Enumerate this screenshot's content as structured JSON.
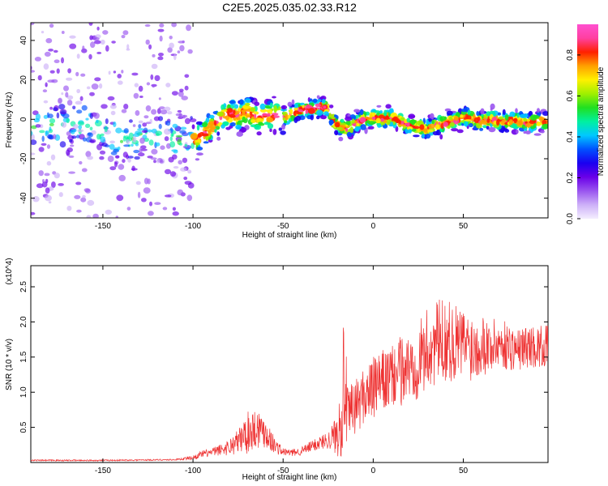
{
  "title": "C2E5.2025.035.02.33.R12",
  "chart_data": [
    {
      "type": "heatmap",
      "xlabel": "Height of straight line (km)",
      "ylabel": "Frequency (Hz)",
      "xlim": [
        -190,
        97
      ],
      "ylim": [
        -50,
        49
      ],
      "xticks": [
        -150,
        -100,
        -50,
        0,
        50
      ],
      "yticks": [
        -40,
        -20,
        0,
        20,
        40
      ],
      "colorbar": {
        "label": "Normalized spectral amplitude",
        "range": [
          0,
          0.95
        ],
        "ticks": [
          0.0,
          0.2,
          0.4,
          0.6,
          0.8
        ],
        "colors": [
          "#f4eefe",
          "#cdb0f8",
          "#9a55ef",
          "#6a00e8",
          "#1a00f0",
          "#0050ff",
          "#00c8ff",
          "#00f0a0",
          "#20e020",
          "#a0f000",
          "#fff000",
          "#ffa000",
          "#ff2000",
          "#ff40a0",
          "#ff50d0"
        ]
      },
      "ridge": {
        "x": [
          -190,
          -175,
          -160,
          -150,
          -140,
          -130,
          -120,
          -110,
          -100,
          -95,
          -90,
          -85,
          -80,
          -75,
          -70,
          -65,
          -60,
          -55,
          -50,
          -45,
          -40,
          -35,
          -30,
          -25,
          -22,
          -20,
          -15,
          -10,
          -5,
          0,
          5,
          10,
          15,
          20,
          25,
          30,
          35,
          40,
          45,
          50,
          55,
          60,
          65,
          70,
          75,
          80,
          85,
          90,
          95
        ],
        "y": [
          -4,
          -3,
          -2,
          -7,
          -11,
          -9,
          -8,
          -10,
          -11,
          -8,
          -4,
          0,
          3,
          2,
          4,
          1,
          2,
          2,
          1,
          3,
          5,
          5,
          6,
          6,
          -1,
          -3,
          -5,
          -2,
          0,
          1,
          0,
          1,
          -1,
          -3,
          -4,
          -5,
          -3,
          -2,
          -1,
          1,
          0,
          -1,
          0,
          -1,
          -1,
          -1,
          -2,
          -1,
          -1
        ]
      }
    },
    {
      "type": "line",
      "xlabel": "Height of straight line (km)",
      "ylabel": "SNR (10 * v/v)",
      "yunit": "(x10^4)",
      "xlim": [
        -190,
        97
      ],
      "ylim": [
        0,
        2.8
      ],
      "xticks": [
        -150,
        -100,
        -50,
        0,
        50
      ],
      "yticks": [
        0.5,
        1.0,
        1.5,
        2.0,
        2.5
      ],
      "color": "#ee3333",
      "envelope": {
        "x": [
          -190,
          -150,
          -110,
          -100,
          -95,
          -90,
          -85,
          -80,
          -75,
          -70,
          -65,
          -60,
          -55,
          -50,
          -45,
          -40,
          -35,
          -30,
          -25,
          -20,
          -18,
          -16,
          -14,
          -12,
          -10,
          -5,
          0,
          5,
          10,
          15,
          20,
          25,
          30,
          35,
          40,
          45,
          50,
          55,
          60,
          65,
          70,
          75,
          80,
          85,
          90,
          95
        ],
        "mean": [
          0.03,
          0.03,
          0.04,
          0.07,
          0.12,
          0.14,
          0.18,
          0.22,
          0.3,
          0.42,
          0.5,
          0.45,
          0.25,
          0.15,
          0.14,
          0.16,
          0.22,
          0.28,
          0.32,
          0.4,
          0.8,
          1.2,
          0.6,
          0.7,
          0.8,
          0.95,
          1.05,
          1.15,
          1.2,
          1.3,
          1.35,
          1.45,
          1.6,
          1.7,
          1.75,
          1.7,
          1.7,
          1.65,
          1.7,
          1.65,
          1.7,
          1.65,
          1.6,
          1.65,
          1.65,
          1.65
        ],
        "spread": [
          0.01,
          0.01,
          0.01,
          0.03,
          0.05,
          0.06,
          0.08,
          0.12,
          0.18,
          0.3,
          0.3,
          0.25,
          0.12,
          0.06,
          0.05,
          0.06,
          0.08,
          0.1,
          0.12,
          0.3,
          0.8,
          0.9,
          0.4,
          0.45,
          0.4,
          0.4,
          0.45,
          0.45,
          0.45,
          0.5,
          0.5,
          0.55,
          0.6,
          0.6,
          0.6,
          0.55,
          0.5,
          0.5,
          0.45,
          0.4,
          0.35,
          0.35,
          0.3,
          0.3,
          0.3,
          0.3
        ]
      }
    }
  ]
}
